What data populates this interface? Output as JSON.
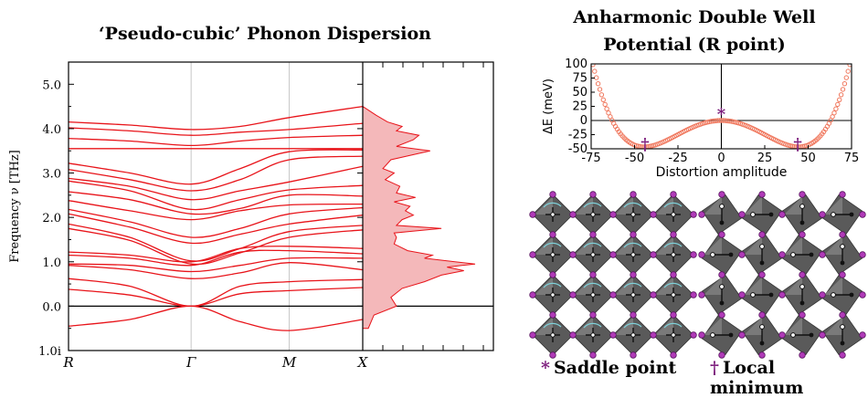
{
  "chart_data": [
    {
      "type": "line",
      "title": "‘Pseudo-cubic’ Phonon Dispersion",
      "ylabel": "Frequency ν [THz]",
      "ylim": [
        -1.0,
        5.5
      ],
      "yticks": [
        "1.0i",
        "0.0",
        "1.0",
        "2.0",
        "3.0",
        "4.0",
        "5.0"
      ],
      "ytick_values": [
        -1.0,
        0.0,
        1.0,
        2.0,
        3.0,
        4.0,
        5.0
      ],
      "x_labels": [
        "R",
        "Γ",
        "M",
        "X"
      ],
      "x_label_pos": [
        0.0,
        1.0,
        1.8,
        2.4
      ],
      "series_color": "#e8141a",
      "bands": [
        [
          4.15,
          4.08,
          3.98,
          4.05,
          4.25,
          4.5
        ],
        [
          4.02,
          3.95,
          3.85,
          3.92,
          3.98,
          4.12
        ],
        [
          3.78,
          3.72,
          3.62,
          3.72,
          3.8,
          3.85
        ],
        [
          3.55,
          3.55,
          3.55,
          3.55,
          3.55,
          3.55
        ],
        [
          3.22,
          3.0,
          2.75,
          3.1,
          3.48,
          3.52
        ],
        [
          3.08,
          2.85,
          2.6,
          2.85,
          3.3,
          3.38
        ],
        [
          2.88,
          2.7,
          2.4,
          2.6,
          2.8,
          3.15
        ],
        [
          2.82,
          2.6,
          2.18,
          2.4,
          2.62,
          2.72
        ],
        [
          2.58,
          2.4,
          2.08,
          2.2,
          2.5,
          2.48
        ],
        [
          2.38,
          2.15,
          1.95,
          2.15,
          2.28,
          2.3
        ],
        [
          2.18,
          1.9,
          1.55,
          1.75,
          2.08,
          2.22
        ],
        [
          2.08,
          1.78,
          1.42,
          1.62,
          1.85,
          2.05
        ],
        [
          1.85,
          1.55,
          1.02,
          1.3,
          1.68,
          1.82
        ],
        [
          1.75,
          1.48,
          0.95,
          1.2,
          1.55,
          1.72
        ],
        [
          1.22,
          1.15,
          1.0,
          1.3,
          1.35,
          1.3
        ],
        [
          1.15,
          1.08,
          0.92,
          1.22,
          1.25,
          1.18
        ],
        [
          0.95,
          0.92,
          0.78,
          0.92,
          1.08,
          1.08
        ],
        [
          0.92,
          0.82,
          0.62,
          0.75,
          0.98,
          0.82
        ],
        [
          0.62,
          0.45,
          0.0,
          0.45,
          0.55,
          0.6
        ],
        [
          0.38,
          0.25,
          0.0,
          0.28,
          0.35,
          0.42
        ],
        [
          -0.45,
          -0.3,
          0.0,
          -0.35,
          -0.55,
          -0.3
        ]
      ],
      "band_x": [
        0.0,
        0.5,
        1.0,
        1.4,
        1.8,
        2.4
      ],
      "dos_xlim": [
        0,
        1
      ],
      "dos": [
        [
          -0.5,
          0.05
        ],
        [
          -0.2,
          0.1
        ],
        [
          0.0,
          0.3
        ],
        [
          0.2,
          0.25
        ],
        [
          0.4,
          0.35
        ],
        [
          0.55,
          0.55
        ],
        [
          0.7,
          0.7
        ],
        [
          0.8,
          0.9
        ],
        [
          0.88,
          0.75
        ],
        [
          0.95,
          1.0
        ],
        [
          1.0,
          0.82
        ],
        [
          1.08,
          0.55
        ],
        [
          1.15,
          0.62
        ],
        [
          1.25,
          0.4
        ],
        [
          1.4,
          0.28
        ],
        [
          1.55,
          0.3
        ],
        [
          1.65,
          0.28
        ],
        [
          1.75,
          0.7
        ],
        [
          1.82,
          0.3
        ],
        [
          1.95,
          0.35
        ],
        [
          2.05,
          0.45
        ],
        [
          2.15,
          0.38
        ],
        [
          2.25,
          0.42
        ],
        [
          2.35,
          0.28
        ],
        [
          2.45,
          0.47
        ],
        [
          2.55,
          0.3
        ],
        [
          2.7,
          0.33
        ],
        [
          2.85,
          0.2
        ],
        [
          3.0,
          0.28
        ],
        [
          3.1,
          0.18
        ],
        [
          3.3,
          0.25
        ],
        [
          3.5,
          0.6
        ],
        [
          3.6,
          0.3
        ],
        [
          3.75,
          0.45
        ],
        [
          3.85,
          0.5
        ],
        [
          3.95,
          0.3
        ],
        [
          4.05,
          0.35
        ],
        [
          4.15,
          0.22
        ],
        [
          4.3,
          0.12
        ],
        [
          4.5,
          0.0
        ]
      ],
      "dos_color": "#f4b8ba"
    },
    {
      "type": "scatter",
      "title": "Anharmonic Double Well Potential (R point)",
      "xlabel": "Distortion amplitude",
      "ylabel": "ΔE (meV)",
      "xlim": [
        -75,
        75
      ],
      "ylim": [
        -50,
        100
      ],
      "xticks": [
        -75,
        -50,
        -25,
        0,
        25,
        50,
        75
      ],
      "yticks": [
        -50,
        -25,
        0,
        25,
        50,
        75,
        100
      ],
      "a": 1.19e-05,
      "b": -0.0471,
      "x_range": [
        -76,
        76
      ],
      "color": "#f0795f",
      "markers": [
        {
          "symbol": "*",
          "x": 0,
          "y": 5
        },
        {
          "symbol": "†",
          "x": -44,
          "y": -42
        },
        {
          "symbol": "†",
          "x": 44,
          "y": -42
        }
      ]
    }
  ],
  "titles": {
    "phonon": "‘Pseudo-cubic’ Phonon Dispersion",
    "double_well_line1": "Anharmonic Double Well",
    "double_well_line2": "Potential (R point)"
  },
  "captions": {
    "saddle_symbol": "*",
    "saddle": "Saddle point",
    "minimum_symbol": "†",
    "minimum": "Local minimum"
  },
  "colors": {
    "band": "#e8141a",
    "dos_fill": "#f4b8ba",
    "marker": "#7b1a7b",
    "octahedron": "#555555",
    "atom": "#b03ab8"
  }
}
